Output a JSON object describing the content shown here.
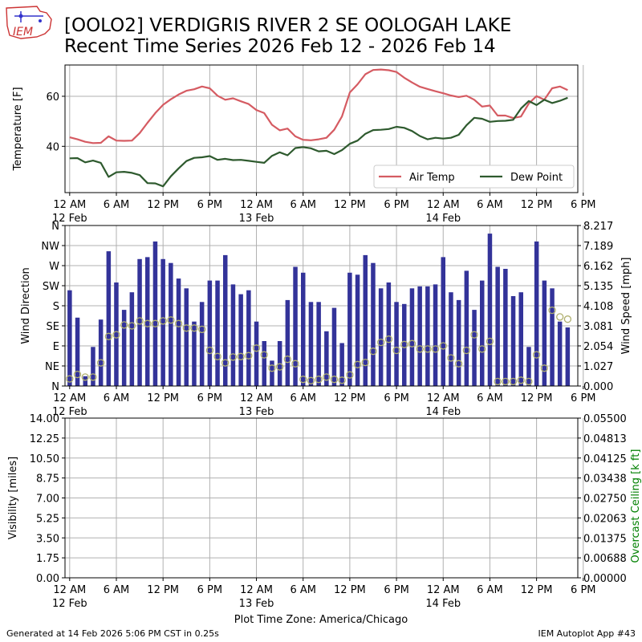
{
  "header": {
    "title_line1": "[OOLO2] VERDIGRIS RIVER 2 SE OOLOGAH LAKE",
    "title_line2": "Recent Time Series 2026 Feb 12 - 2026 Feb 14",
    "logo_text": "IEM"
  },
  "footer": {
    "generated": "Generated at 14 Feb 2026 5:06 PM CST in 0.25s",
    "app": "IEM Autoplot App #43"
  },
  "time_axis": {
    "tick_hours": [
      0,
      6,
      12,
      18,
      24,
      30,
      36,
      42,
      48,
      54,
      60,
      66
    ],
    "tick_labels": [
      "12 AM",
      "6 AM",
      "12 PM",
      "6 PM",
      "12 AM",
      "6 AM",
      "12 PM",
      "6 PM",
      "12 AM",
      "6 AM",
      "12 PM",
      "6 PM"
    ],
    "date_labels": [
      {
        "hour": 0,
        "label": "12 Feb"
      },
      {
        "hour": 24,
        "label": "13 Feb"
      },
      {
        "hour": 48,
        "label": "14 Feb"
      }
    ],
    "xlabel": "Plot Time Zone: America/Chicago"
  },
  "chart_data": [
    {
      "type": "line",
      "ylabel": "Temperature [F]",
      "yticks": [
        40,
        60
      ],
      "ylim": [
        21.5,
        72.5
      ],
      "grid": true,
      "legend_placement": "lower-right",
      "x_unit": "hours since 12 Feb 12 AM",
      "series": [
        {
          "name": "Air Temp",
          "color": "#d55b62",
          "x": [
            0,
            1,
            2,
            3,
            4,
            5,
            6,
            7,
            8,
            9,
            10,
            11,
            12,
            13,
            14,
            15,
            16,
            17,
            18,
            19,
            20,
            21,
            22,
            23,
            24,
            25,
            26,
            27,
            28,
            29,
            30,
            31,
            32,
            33,
            34,
            35,
            36,
            37,
            38,
            39,
            40,
            41,
            42,
            43,
            44,
            45,
            46,
            47,
            48,
            49,
            50,
            51,
            52,
            53,
            54,
            55,
            56,
            57,
            58,
            59,
            60,
            61,
            62,
            63,
            64
          ],
          "values": [
            43.6,
            42.8,
            41.8,
            41.3,
            41.4,
            44,
            42.3,
            42.2,
            42.3,
            45.3,
            49.4,
            53.3,
            56.6,
            58.8,
            60.7,
            62.2,
            62.8,
            63.9,
            63.2,
            60.2,
            58.6,
            59.2,
            58,
            56.9,
            54.5,
            53.3,
            48.6,
            46.4,
            47.1,
            44,
            42.6,
            42.4,
            42.8,
            43.4,
            46.6,
            52,
            61.5,
            64.8,
            68.8,
            70.5,
            70.7,
            70.4,
            69.7,
            67.4,
            65.5,
            63.8,
            62.9,
            62,
            61.2,
            60.3,
            59.7,
            60.2,
            58.6,
            55.9,
            56.3,
            52.3,
            52.3,
            51.3,
            51.9,
            57.1,
            60.1,
            58.6,
            63.2,
            63.9,
            62.5
          ]
        },
        {
          "name": "Dew Point",
          "color": "#2e5a2e",
          "x": [
            0,
            1,
            2,
            3,
            4,
            5,
            6,
            7,
            8,
            9,
            10,
            11,
            12,
            13,
            14,
            15,
            16,
            17,
            18,
            19,
            20,
            21,
            22,
            23,
            24,
            25,
            26,
            27,
            28,
            29,
            30,
            31,
            32,
            33,
            34,
            35,
            36,
            37,
            38,
            39,
            40,
            41,
            42,
            43,
            44,
            45,
            46,
            47,
            48,
            49,
            50,
            51,
            52,
            53,
            54,
            55,
            56,
            57,
            58,
            59,
            60,
            61,
            62,
            63,
            64
          ],
          "values": [
            35.2,
            35.3,
            33.6,
            34.3,
            33.4,
            27.8,
            29.6,
            29.8,
            29.4,
            28.5,
            25.3,
            25.2,
            24,
            28,
            31.2,
            34.1,
            35.4,
            35.6,
            36.1,
            34.6,
            35,
            34.5,
            34.6,
            34.2,
            33.8,
            33.4,
            36.2,
            37.6,
            36.4,
            39.3,
            39.7,
            39.2,
            38,
            38.2,
            36.9,
            38.5,
            41,
            42.3,
            45,
            46.5,
            46.6,
            46.9,
            47.8,
            47.4,
            46.1,
            44.1,
            42.8,
            43.4,
            43.1,
            43.4,
            44.6,
            48.4,
            51.4,
            51,
            49.8,
            50.1,
            50.2,
            50.6,
            55.1,
            58.1,
            56.5,
            58.6,
            57.3,
            58.2,
            59.4
          ]
        }
      ]
    },
    {
      "type": "bar",
      "ylabel": "Wind Direction",
      "y2label": "Wind Speed [mph]",
      "direction_ticks": [
        "N",
        "NE",
        "E",
        "SE",
        "S",
        "SW",
        "W",
        "NW",
        "N"
      ],
      "speed_ticks": [
        "0.000",
        "1.027",
        "2.054",
        "3.081",
        "4.108",
        "5.135",
        "6.162",
        "7.189",
        "8.217"
      ],
      "speed_max": 8.217,
      "grid": true,
      "series": [
        {
          "name": "Wind Speed",
          "color": "#333399",
          "x": [
            0,
            1,
            2,
            3,
            4,
            5,
            6,
            7,
            8,
            9,
            10,
            11,
            12,
            13,
            14,
            15,
            16,
            17,
            18,
            19,
            20,
            21,
            22,
            23,
            24,
            25,
            26,
            27,
            28,
            29,
            30,
            31,
            32,
            33,
            34,
            35,
            36,
            37,
            38,
            39,
            40,
            41,
            42,
            43,
            44,
            45,
            46,
            47,
            48,
            49,
            50,
            51,
            52,
            53,
            54,
            55,
            56,
            57,
            58,
            59,
            60,
            61,
            62,
            63,
            64
          ],
          "values": [
            4.9,
            3.5,
            0.5,
            2.0,
            3.4,
            6.9,
            5.3,
            3.9,
            4.8,
            6.5,
            6.6,
            7.4,
            6.5,
            6.3,
            5.5,
            5.0,
            3.3,
            4.3,
            5.4,
            5.4,
            6.7,
            5.2,
            4.7,
            4.9,
            3.3,
            2.3,
            1.3,
            2.3,
            4.4,
            6.1,
            5.8,
            4.3,
            4.3,
            2.8,
            4.0,
            2.2,
            5.8,
            5.7,
            6.7,
            6.3,
            5.0,
            5.3,
            4.3,
            4.2,
            5.0,
            5.1,
            5.1,
            5.2,
            6.6,
            4.8,
            4.4,
            5.9,
            3.9,
            5.4,
            7.8,
            6.1,
            6.0,
            4.6,
            4.8,
            2.0,
            7.4,
            5.4,
            5.0,
            3.3,
            3.0
          ]
        },
        {
          "name": "Wind Direction",
          "type": "scatter",
          "color": "#b0b070",
          "x": [
            0,
            1,
            2,
            3,
            4,
            5,
            6,
            7,
            8,
            9,
            10,
            11,
            12,
            13,
            14,
            15,
            16,
            17,
            18,
            19,
            20,
            21,
            22,
            23,
            24,
            25,
            26,
            27,
            28,
            29,
            30,
            31,
            32,
            33,
            34,
            35,
            36,
            37,
            38,
            39,
            40,
            41,
            42,
            43,
            44,
            45,
            46,
            47,
            48,
            49,
            50,
            51,
            52,
            53,
            54,
            55,
            56,
            57,
            58,
            59,
            60,
            61,
            62,
            63,
            64
          ],
          "values": [
            16,
            26,
            20,
            20,
            52,
            111,
            115,
            137,
            135,
            146,
            140,
            140,
            146,
            148,
            140,
            130,
            130,
            127,
            80,
            66,
            52,
            65,
            66,
            68,
            85,
            70,
            40,
            43,
            60,
            50,
            15,
            12,
            15,
            20,
            15,
            13,
            25,
            48,
            53,
            78,
            98,
            105,
            80,
            93,
            95,
            83,
            83,
            83,
            90,
            63,
            50,
            80,
            115,
            83,
            100,
            10,
            10,
            10,
            13,
            10,
            70,
            40,
            170,
            155,
            150
          ]
        }
      ]
    },
    {
      "type": "line",
      "ylabel": "Visibility [miles]",
      "y2label": "Overcast Ceiling [k ft]",
      "yticks": [
        "0.00",
        "1.75",
        "3.50",
        "5.25",
        "7.00",
        "8.75",
        "10.50",
        "12.25",
        "14.00"
      ],
      "y2ticks": [
        "0.00000",
        "0.00688",
        "0.01375",
        "0.02063",
        "0.02750",
        "0.03438",
        "0.04125",
        "0.04813",
        "0.05500"
      ],
      "ylim": [
        0,
        14
      ],
      "y2lim": [
        0,
        0.055
      ],
      "grid": true,
      "series": []
    }
  ]
}
